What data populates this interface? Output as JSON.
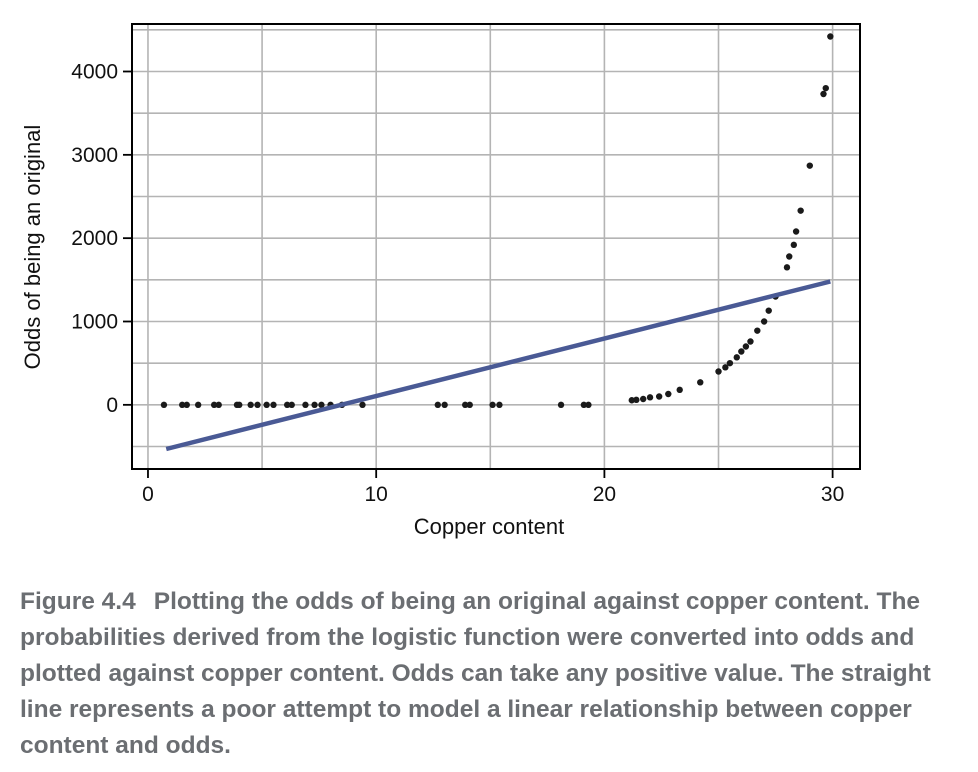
{
  "chart_data": {
    "type": "scatter",
    "xlabel": "Copper content",
    "ylabel": "Odds of being an original",
    "xlim": [
      -0.7,
      31.2
    ],
    "ylim": [
      -770,
      4570
    ],
    "xticks": [
      0,
      10,
      20,
      30
    ],
    "yticks": [
      0,
      1000,
      2000,
      3000,
      4000
    ],
    "grid": true,
    "series": [
      {
        "marker": "point",
        "color": "#1a1a1a",
        "points": [
          [
            0.7,
            0
          ],
          [
            1.5,
            0
          ],
          [
            1.7,
            0
          ],
          [
            2.2,
            0
          ],
          [
            2.9,
            0
          ],
          [
            3.1,
            0
          ],
          [
            3.9,
            0
          ],
          [
            4.0,
            0
          ],
          [
            4.5,
            0
          ],
          [
            4.8,
            0
          ],
          [
            5.2,
            0
          ],
          [
            5.5,
            0
          ],
          [
            6.1,
            0
          ],
          [
            6.3,
            0
          ],
          [
            6.9,
            0
          ],
          [
            7.3,
            0
          ],
          [
            7.6,
            0
          ],
          [
            8.0,
            0
          ],
          [
            8.5,
            0
          ],
          [
            9.4,
            0
          ],
          [
            12.7,
            0
          ],
          [
            13.0,
            0
          ],
          [
            13.9,
            0
          ],
          [
            14.1,
            0
          ],
          [
            15.1,
            0
          ],
          [
            15.4,
            0
          ],
          [
            18.1,
            0
          ],
          [
            19.1,
            0
          ],
          [
            19.3,
            0
          ],
          [
            21.2,
            55
          ],
          [
            21.4,
            60
          ],
          [
            21.7,
            70
          ],
          [
            22.0,
            90
          ],
          [
            22.4,
            100
          ],
          [
            22.8,
            130
          ],
          [
            23.3,
            180
          ],
          [
            24.2,
            270
          ],
          [
            25.0,
            400
          ],
          [
            25.3,
            450
          ],
          [
            25.5,
            500
          ],
          [
            25.8,
            570
          ],
          [
            26.0,
            640
          ],
          [
            26.2,
            700
          ],
          [
            26.4,
            760
          ],
          [
            26.7,
            890
          ],
          [
            27.0,
            1000
          ],
          [
            27.2,
            1130
          ],
          [
            27.5,
            1300
          ],
          [
            28.0,
            1650
          ],
          [
            28.1,
            1780
          ],
          [
            28.3,
            1920
          ],
          [
            28.4,
            2080
          ],
          [
            28.6,
            2330
          ],
          [
            29.0,
            2870
          ],
          [
            29.6,
            3730
          ],
          [
            29.7,
            3800
          ],
          [
            29.9,
            4420
          ]
        ]
      },
      {
        "marker": "line",
        "color": "#4a5a95",
        "points": [
          [
            0.8,
            -530
          ],
          [
            29.9,
            1480
          ]
        ]
      }
    ]
  },
  "caption": {
    "figure_number": "Figure 4.4",
    "text": "Plotting the odds of being an original against copper content. The probabilities derived from the logistic function were converted into odds and plotted against copper content. Odds can take any positive value. The straight line represents a poor attempt to model a linear relationship between copper content and odds."
  }
}
